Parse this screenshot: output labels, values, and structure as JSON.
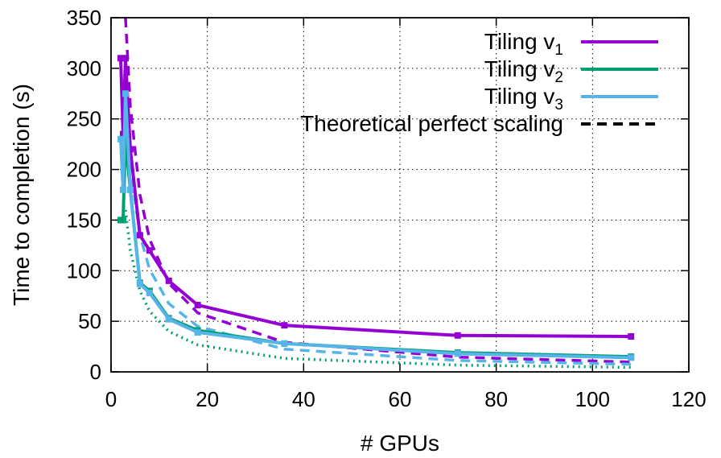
{
  "chart_data": {
    "type": "line",
    "xlabel": "# GPUs",
    "ylabel": "Time to completion (s)",
    "xlim": [
      0,
      120
    ],
    "ylim": [
      0,
      350
    ],
    "xticks": [
      0,
      20,
      40,
      60,
      80,
      100,
      120
    ],
    "yticks": [
      0,
      50,
      100,
      150,
      200,
      250,
      300,
      350
    ],
    "grid": true,
    "legend_position": "top-right",
    "series": [
      {
        "name": "Tiling v",
        "subscript": "1",
        "color": "#9400d3",
        "x": [
          2,
          2.5,
          3,
          4,
          6,
          8,
          12,
          18,
          36,
          72,
          108
        ],
        "y": [
          310,
          235,
          310,
          220,
          135,
          120,
          90,
          66,
          46,
          36,
          35
        ]
      },
      {
        "name": "Tiling v",
        "subscript": "2",
        "color": "#009e73",
        "x": [
          2,
          2.5,
          3,
          4,
          6,
          8,
          12,
          18,
          36,
          72,
          108
        ],
        "y": [
          150,
          150,
          230,
          180,
          88,
          80,
          53,
          41,
          28,
          19,
          15
        ]
      },
      {
        "name": "Tiling v",
        "subscript": "3",
        "color": "#56b4e9",
        "x": [
          2,
          2.5,
          3,
          4,
          6,
          8,
          12,
          18,
          36,
          72,
          108
        ],
        "y": [
          230,
          180,
          275,
          180,
          87,
          78,
          52,
          39,
          28,
          18,
          14
        ]
      }
    ],
    "theoretical": {
      "name": "Theoretical perfect scaling",
      "x": [
        3,
        4,
        6,
        8,
        12,
        18,
        36,
        72,
        108
      ],
      "curves": [
        {
          "color": "#9400d3",
          "base_time": 350,
          "base_gpus": 3
        },
        {
          "color": "#009e73",
          "base_time": 160,
          "base_gpus": 3
        },
        {
          "color": "#56b4e9",
          "base_time": 270,
          "base_gpus": 3
        }
      ]
    }
  }
}
